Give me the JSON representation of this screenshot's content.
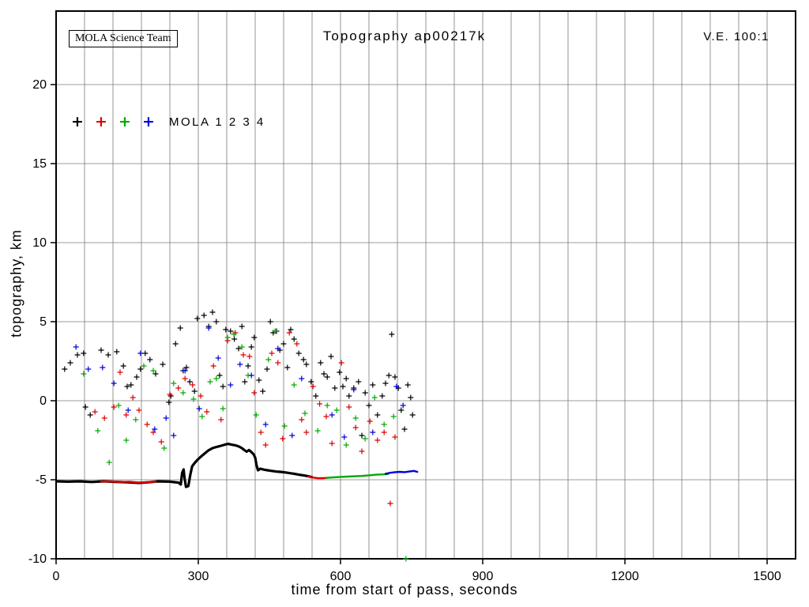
{
  "annotations": {
    "team_box": "MOLA Science Team",
    "vertical_exaggeration": "V.E. 100:1"
  },
  "chart_data": {
    "type": "scatter",
    "title": "Topography ap00217k",
    "xlabel": "time from start of pass, seconds",
    "ylabel": "topography, km",
    "xlim": [
      0,
      1560
    ],
    "ylim": [
      -10,
      24.65
    ],
    "xticks": [
      0,
      300,
      600,
      900,
      1200,
      1500
    ],
    "yticks": [
      -10,
      -5,
      0,
      5,
      10,
      15,
      20
    ],
    "x_grid_interval": 60,
    "grid_on": true,
    "grid_color": "#7a7a7a",
    "legend": {
      "text": "MOLA 1 2 3 4",
      "position": "upper-left-inside",
      "marker_colors": [
        "#000000",
        "#dd0000",
        "#00aa00",
        "#0000dd"
      ]
    },
    "series": [
      {
        "name": "MOLA 1",
        "color": "#000000",
        "line_width": 3.2,
        "profile_segments": [
          [
            [
              2,
              -5.1
            ],
            [
              25,
              -5.12
            ],
            [
              50,
              -5.1
            ],
            [
              75,
              -5.14
            ],
            [
              100,
              -5.1
            ],
            [
              125,
              -5.13
            ],
            [
              150,
              -5.16
            ],
            [
              175,
              -5.2
            ],
            [
              195,
              -5.16
            ],
            [
              215,
              -5.1
            ],
            [
              240,
              -5.12
            ],
            [
              258,
              -5.18
            ],
            [
              263,
              -5.3
            ],
            [
              266,
              -4.55
            ],
            [
              269,
              -4.35
            ],
            [
              271,
              -4.9
            ],
            [
              274,
              -5.45
            ],
            [
              279,
              -5.4
            ],
            [
              283,
              -4.7
            ],
            [
              287,
              -4.15
            ],
            [
              292,
              -3.95
            ],
            [
              298,
              -3.75
            ],
            [
              305,
              -3.55
            ],
            [
              313,
              -3.35
            ],
            [
              321,
              -3.15
            ],
            [
              330,
              -3.0
            ],
            [
              339,
              -2.92
            ],
            [
              348,
              -2.85
            ],
            [
              356,
              -2.78
            ],
            [
              363,
              -2.73
            ],
            [
              370,
              -2.78
            ],
            [
              378,
              -2.82
            ],
            [
              386,
              -2.9
            ],
            [
              392,
              -3.0
            ],
            [
              397,
              -3.12
            ],
            [
              402,
              -3.22
            ],
            [
              407,
              -3.12
            ],
            [
              412,
              -3.25
            ],
            [
              417,
              -3.4
            ],
            [
              420,
              -3.6
            ],
            [
              423,
              -4.1
            ],
            [
              426,
              -4.4
            ],
            [
              431,
              -4.3
            ],
            [
              438,
              -4.36
            ],
            [
              446,
              -4.4
            ],
            [
              455,
              -4.44
            ],
            [
              464,
              -4.48
            ],
            [
              473,
              -4.5
            ],
            [
              482,
              -4.53
            ],
            [
              492,
              -4.58
            ],
            [
              502,
              -4.62
            ],
            [
              512,
              -4.68
            ],
            [
              522,
              -4.72
            ],
            [
              532,
              -4.78
            ],
            [
              540,
              -4.84
            ]
          ]
        ],
        "scatter": [
          [
            18,
            2.0
          ],
          [
            30,
            2.4
          ],
          [
            45,
            2.9
          ],
          [
            58,
            3.0
          ],
          [
            62,
            -0.4
          ],
          [
            72,
            -0.9
          ],
          [
            95,
            3.2
          ],
          [
            110,
            2.9
          ],
          [
            128,
            3.1
          ],
          [
            142,
            2.2
          ],
          [
            150,
            0.9
          ],
          [
            158,
            1.0
          ],
          [
            170,
            1.5
          ],
          [
            178,
            2.0
          ],
          [
            188,
            3.0
          ],
          [
            198,
            2.6
          ],
          [
            210,
            1.7
          ],
          [
            225,
            2.3
          ],
          [
            238,
            -0.1
          ],
          [
            242,
            0.3
          ],
          [
            252,
            3.6
          ],
          [
            262,
            4.6
          ],
          [
            268,
            1.9
          ],
          [
            275,
            2.1
          ],
          [
            282,
            1.2
          ],
          [
            292,
            0.6
          ],
          [
            298,
            5.2
          ],
          [
            312,
            5.4
          ],
          [
            322,
            4.7
          ],
          [
            330,
            5.6
          ],
          [
            338,
            5.0
          ],
          [
            345,
            1.6
          ],
          [
            352,
            0.9
          ],
          [
            358,
            4.5
          ],
          [
            368,
            4.4
          ],
          [
            376,
            3.9
          ],
          [
            385,
            3.3
          ],
          [
            392,
            4.7
          ],
          [
            398,
            1.2
          ],
          [
            405,
            2.2
          ],
          [
            412,
            3.4
          ],
          [
            418,
            4.0
          ],
          [
            428,
            1.3
          ],
          [
            436,
            0.6
          ],
          [
            445,
            2.0
          ],
          [
            452,
            5.0
          ],
          [
            458,
            4.3
          ],
          [
            465,
            4.4
          ],
          [
            472,
            3.2
          ],
          [
            480,
            3.6
          ],
          [
            488,
            2.1
          ],
          [
            495,
            4.5
          ],
          [
            502,
            3.9
          ],
          [
            512,
            3.0
          ],
          [
            522,
            2.6
          ],
          [
            528,
            2.3
          ],
          [
            538,
            1.2
          ],
          [
            548,
            0.3
          ],
          [
            558,
            2.4
          ],
          [
            565,
            1.7
          ],
          [
            572,
            1.5
          ],
          [
            580,
            2.8
          ],
          [
            588,
            0.8
          ],
          [
            598,
            1.8
          ],
          [
            605,
            0.9
          ],
          [
            612,
            1.4
          ],
          [
            618,
            0.3
          ],
          [
            628,
            0.8
          ],
          [
            638,
            1.2
          ],
          [
            645,
            -2.2
          ],
          [
            652,
            0.5
          ],
          [
            660,
            -0.3
          ],
          [
            668,
            1.0
          ],
          [
            678,
            -0.9
          ],
          [
            688,
            0.3
          ],
          [
            695,
            1.1
          ],
          [
            702,
            1.6
          ],
          [
            708,
            4.2
          ],
          [
            715,
            1.5
          ],
          [
            722,
            0.8
          ],
          [
            728,
            -0.6
          ],
          [
            735,
            -1.8
          ],
          [
            742,
            1.0
          ],
          [
            748,
            0.2
          ],
          [
            752,
            -0.9
          ]
        ]
      },
      {
        "name": "MOLA 2",
        "color": "#dd0000",
        "line_width": 2.4,
        "profile_segments": [
          [
            [
              95,
              -5.12
            ],
            [
              115,
              -5.1
            ],
            [
              135,
              -5.14
            ],
            [
              155,
              -5.12
            ],
            [
              175,
              -5.18
            ],
            [
              195,
              -5.15
            ],
            [
              210,
              -5.12
            ]
          ],
          [
            [
              532,
              -4.8
            ],
            [
              542,
              -4.86
            ],
            [
              552,
              -4.9
            ],
            [
              562,
              -4.9
            ],
            [
              572,
              -4.88
            ]
          ]
        ],
        "scatter": [
          [
            82,
            -0.7
          ],
          [
            102,
            -1.1
          ],
          [
            122,
            -0.4
          ],
          [
            135,
            1.8
          ],
          [
            148,
            -0.9
          ],
          [
            162,
            0.2
          ],
          [
            175,
            -0.6
          ],
          [
            192,
            -1.5
          ],
          [
            205,
            -2.0
          ],
          [
            222,
            -2.6
          ],
          [
            240,
            0.4
          ],
          [
            258,
            0.8
          ],
          [
            272,
            1.4
          ],
          [
            288,
            1.0
          ],
          [
            305,
            0.3
          ],
          [
            318,
            -0.7
          ],
          [
            332,
            2.2
          ],
          [
            348,
            -1.2
          ],
          [
            362,
            3.8
          ],
          [
            378,
            4.3
          ],
          [
            395,
            2.9
          ],
          [
            408,
            2.8
          ],
          [
            418,
            0.5
          ],
          [
            432,
            -2.0
          ],
          [
            442,
            -2.8
          ],
          [
            455,
            3.0
          ],
          [
            468,
            2.4
          ],
          [
            478,
            -2.4
          ],
          [
            492,
            4.3
          ],
          [
            508,
            3.6
          ],
          [
            518,
            -1.2
          ],
          [
            528,
            -2.0
          ],
          [
            542,
            0.9
          ],
          [
            556,
            -0.2
          ],
          [
            570,
            -1.0
          ],
          [
            582,
            -2.7
          ],
          [
            602,
            2.4
          ],
          [
            618,
            -0.4
          ],
          [
            632,
            -1.7
          ],
          [
            645,
            -3.2
          ],
          [
            662,
            -1.3
          ],
          [
            678,
            -2.5
          ],
          [
            692,
            -2.0
          ],
          [
            705,
            -6.5
          ],
          [
            715,
            -2.3
          ]
        ]
      },
      {
        "name": "MOLA 3",
        "color": "#00aa00",
        "line_width": 2.4,
        "profile_segments": [
          [
            [
              570,
              -4.88
            ],
            [
              585,
              -4.85
            ],
            [
              600,
              -4.82
            ],
            [
              615,
              -4.8
            ],
            [
              630,
              -4.78
            ],
            [
              645,
              -4.76
            ],
            [
              660,
              -4.72
            ],
            [
              675,
              -4.68
            ],
            [
              690,
              -4.66
            ],
            [
              700,
              -4.64
            ]
          ]
        ],
        "scatter": [
          [
            58,
            1.7
          ],
          [
            88,
            -1.9
          ],
          [
            112,
            -3.9
          ],
          [
            132,
            -0.3
          ],
          [
            148,
            -2.5
          ],
          [
            168,
            -1.2
          ],
          [
            185,
            2.2
          ],
          [
            205,
            1.9
          ],
          [
            228,
            -3.0
          ],
          [
            248,
            1.1
          ],
          [
            268,
            0.5
          ],
          [
            290,
            0.1
          ],
          [
            308,
            -1.0
          ],
          [
            325,
            1.2
          ],
          [
            338,
            1.4
          ],
          [
            352,
            -0.5
          ],
          [
            362,
            4.0
          ],
          [
            375,
            4.2
          ],
          [
            392,
            3.4
          ],
          [
            405,
            1.6
          ],
          [
            422,
            -0.9
          ],
          [
            448,
            2.6
          ],
          [
            462,
            4.4
          ],
          [
            482,
            -1.6
          ],
          [
            502,
            1.0
          ],
          [
            525,
            -0.8
          ],
          [
            552,
            -1.9
          ],
          [
            572,
            -0.3
          ],
          [
            592,
            -0.6
          ],
          [
            612,
            -2.8
          ],
          [
            632,
            -1.1
          ],
          [
            652,
            -2.4
          ],
          [
            672,
            0.2
          ],
          [
            692,
            -1.5
          ],
          [
            712,
            -1.0
          ],
          [
            738,
            -10.0
          ]
        ]
      },
      {
        "name": "MOLA 4",
        "color": "#0000dd",
        "line_width": 2.4,
        "profile_segments": [
          [
            [
              695,
              -4.62
            ],
            [
              705,
              -4.56
            ],
            [
              715,
              -4.52
            ],
            [
              725,
              -4.5
            ],
            [
              735,
              -4.52
            ],
            [
              745,
              -4.48
            ],
            [
              755,
              -4.44
            ],
            [
              762,
              -4.5
            ]
          ]
        ],
        "scatter": [
          [
            42,
            3.4
          ],
          [
            68,
            2.0
          ],
          [
            98,
            2.1
          ],
          [
            122,
            1.1
          ],
          [
            152,
            -0.6
          ],
          [
            178,
            3.0
          ],
          [
            208,
            -1.8
          ],
          [
            232,
            -1.1
          ],
          [
            248,
            -2.2
          ],
          [
            272,
            1.9
          ],
          [
            302,
            -0.5
          ],
          [
            322,
            4.6
          ],
          [
            342,
            2.7
          ],
          [
            368,
            1.0
          ],
          [
            388,
            2.3
          ],
          [
            412,
            1.6
          ],
          [
            442,
            -1.5
          ],
          [
            468,
            3.3
          ],
          [
            498,
            -2.2
          ],
          [
            518,
            1.4
          ],
          [
            582,
            -0.9
          ],
          [
            608,
            -2.3
          ],
          [
            628,
            0.7
          ],
          [
            668,
            -2.0
          ],
          [
            718,
            0.9
          ],
          [
            732,
            -0.3
          ]
        ]
      }
    ]
  }
}
